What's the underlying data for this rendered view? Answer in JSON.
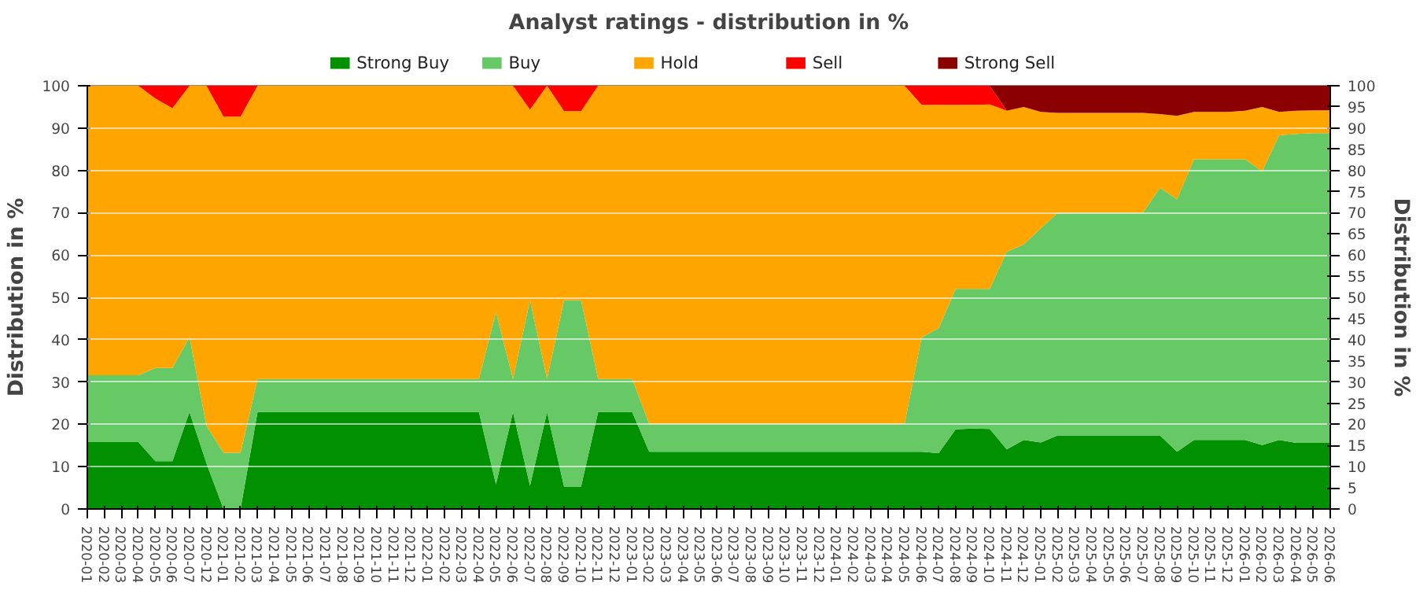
{
  "chart_data": {
    "type": "area",
    "stacked": true,
    "title": "Analyst ratings - distribution in %",
    "ylabel": "Distribution in %",
    "y2label": "Distribution in %",
    "categories": [
      "2020-01",
      "2020-02",
      "2020-03",
      "2020-04",
      "2020-05",
      "2020-06",
      "2020-07",
      "2020-12",
      "2021-01",
      "2021-02",
      "2021-03",
      "2021-04",
      "2021-05",
      "2021-06",
      "2021-07",
      "2021-08",
      "2021-09",
      "2021-10",
      "2021-11",
      "2021-12",
      "2022-01",
      "2022-02",
      "2022-03",
      "2022-04",
      "2022-05",
      "2022-06",
      "2022-07",
      "2022-08",
      "2022-09",
      "2022-10",
      "2022-11",
      "2022-12",
      "2023-01",
      "2023-02",
      "2023-03",
      "2023-04",
      "2023-05",
      "2023-06",
      "2023-07",
      "2023-08",
      "2023-09",
      "2023-10",
      "2023-11",
      "2023-12",
      "2024-01",
      "2024-02",
      "2024-03",
      "2024-04",
      "2024-05",
      "2024-06",
      "2024-07",
      "2024-08",
      "2024-09",
      "2024-10",
      "2024-11",
      "2024-12",
      "2025-01",
      "2025-02",
      "2025-03",
      "2025-04",
      "2025-05",
      "2025-06",
      "2025-07",
      "2025-08",
      "2025-09",
      "2025-10",
      "2025-11",
      "2025-12",
      "2026-01",
      "2026-02",
      "2026-03",
      "2026-04",
      "2026-05",
      "2026-06"
    ],
    "series": [
      {
        "name": "Strong Buy",
        "color": "#009000",
        "values": [
          15.8,
          15.8,
          15.8,
          15.8,
          11.3,
          11.3,
          22.9,
          10.8,
          0,
          0,
          22.9,
          22.9,
          22.9,
          22.9,
          22.9,
          22.9,
          22.9,
          22.9,
          22.9,
          22.9,
          22.9,
          22.9,
          22.9,
          22.9,
          5.8,
          22.9,
          5.5,
          22.9,
          5.3,
          5.3,
          22.9,
          22.9,
          22.9,
          13.5,
          13.5,
          13.5,
          13.5,
          13.5,
          13.5,
          13.5,
          13.5,
          13.5,
          13.5,
          13.5,
          13.5,
          13.5,
          13.5,
          13.5,
          13.5,
          13.5,
          13.2,
          18.8,
          19.0,
          18.9,
          14.1,
          16.3,
          15.7,
          17.4,
          17.4,
          17.4,
          17.4,
          17.4,
          17.4,
          17.4,
          13.5,
          16.3,
          16.3,
          16.3,
          16.3,
          15.1,
          16.3,
          15.6,
          15.6,
          15.6
        ]
      },
      {
        "name": "Buy",
        "color": "#66c966",
        "values": [
          15.8,
          15.8,
          15.8,
          15.8,
          22.0,
          22.0,
          17.7,
          8.8,
          13.3,
          13.3,
          7.8,
          7.8,
          7.8,
          7.8,
          7.8,
          7.8,
          7.8,
          7.8,
          7.8,
          7.8,
          7.8,
          7.8,
          7.8,
          7.8,
          40.7,
          7.8,
          43.8,
          7.8,
          44.0,
          44.0,
          7.8,
          7.8,
          7.8,
          6.6,
          6.6,
          6.6,
          6.6,
          6.6,
          6.6,
          6.6,
          6.6,
          6.6,
          6.6,
          6.6,
          6.6,
          6.6,
          6.6,
          6.6,
          6.6,
          27.0,
          29.5,
          33.2,
          33.0,
          33.1,
          46.7,
          46.2,
          50.6,
          52.6,
          52.6,
          52.6,
          52.6,
          52.6,
          52.6,
          58.5,
          59.7,
          66.3,
          66.3,
          66.3,
          66.3,
          64.7,
          72.0,
          73.0,
          73.2,
          73.2
        ]
      },
      {
        "name": "Hold",
        "color": "#ffa500",
        "values": [
          68.4,
          68.4,
          68.4,
          68.4,
          63.7,
          61.4,
          59.4,
          80.4,
          79.4,
          79.4,
          69.3,
          69.3,
          69.3,
          69.3,
          69.3,
          69.3,
          69.3,
          69.3,
          69.3,
          69.3,
          69.3,
          69.3,
          69.3,
          69.3,
          53.5,
          69.3,
          45.1,
          69.3,
          44.7,
          44.7,
          69.3,
          69.3,
          69.3,
          79.9,
          79.9,
          79.9,
          79.9,
          79.9,
          79.9,
          79.9,
          79.9,
          79.9,
          79.9,
          79.9,
          79.9,
          79.9,
          79.9,
          79.9,
          79.9,
          55.0,
          52.8,
          43.5,
          43.5,
          43.6,
          33.3,
          32.5,
          27.5,
          23.6,
          23.6,
          23.6,
          23.6,
          23.6,
          23.6,
          17.4,
          19.7,
          11.2,
          11.2,
          11.2,
          11.5,
          15.2,
          5.5,
          5.5,
          5.4,
          5.4
        ]
      },
      {
        "name": "Sell",
        "color": "#ff0000",
        "values": [
          null,
          null,
          null,
          0,
          3.0,
          5.3,
          0,
          0,
          7.3,
          7.3,
          0,
          null,
          null,
          null,
          null,
          null,
          null,
          null,
          null,
          null,
          null,
          null,
          null,
          null,
          null,
          0,
          5.6,
          0,
          6.0,
          6.0,
          0,
          null,
          null,
          null,
          null,
          null,
          null,
          null,
          null,
          null,
          null,
          null,
          null,
          null,
          null,
          null,
          null,
          null,
          0,
          4.5,
          4.5,
          4.5,
          4.5,
          4.4,
          0,
          null,
          null,
          null,
          null,
          null,
          null,
          null,
          null,
          null,
          null,
          null,
          null,
          null,
          null,
          null,
          null,
          null,
          null,
          null
        ]
      },
      {
        "name": "Strong Sell",
        "color": "#8b0000",
        "values": [
          null,
          null,
          null,
          null,
          null,
          null,
          null,
          null,
          null,
          null,
          null,
          null,
          null,
          null,
          null,
          null,
          null,
          null,
          null,
          null,
          null,
          null,
          null,
          null,
          null,
          null,
          null,
          null,
          null,
          null,
          null,
          null,
          null,
          null,
          null,
          null,
          null,
          null,
          null,
          null,
          null,
          null,
          null,
          null,
          null,
          null,
          null,
          null,
          null,
          null,
          null,
          null,
          null,
          0,
          5.9,
          5.0,
          6.2,
          6.4,
          6.4,
          6.4,
          6.4,
          6.4,
          6.4,
          6.7,
          7.1,
          6.2,
          6.2,
          6.2,
          5.9,
          5.0,
          6.2,
          5.9,
          5.8,
          5.8
        ]
      }
    ],
    "ylim": [
      0,
      100
    ],
    "yticks": [
      0,
      10,
      20,
      30,
      40,
      50,
      60,
      70,
      80,
      90,
      100
    ],
    "y2lim": [
      0,
      100
    ],
    "y2ticks": [
      0,
      5,
      10,
      15,
      20,
      25,
      30,
      35,
      40,
      45,
      50,
      55,
      60,
      65,
      70,
      75,
      80,
      85,
      90,
      95,
      100
    ],
    "grid": "y",
    "legend": "top"
  }
}
